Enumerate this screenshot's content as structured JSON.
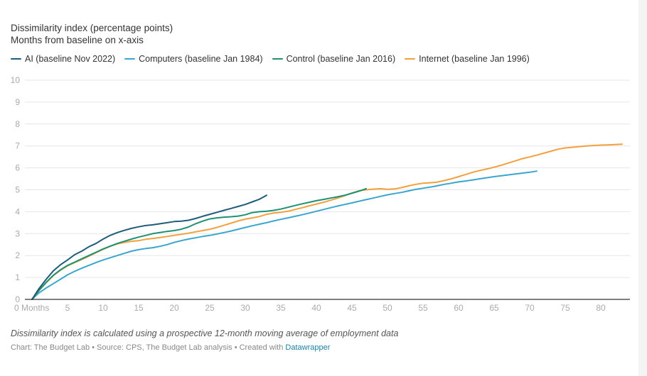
{
  "header": {
    "title_line1": "Dissimilarity index (percentage points)",
    "title_line2": "Months from baseline on x-axis"
  },
  "footer": {
    "notes": "Dissimilarity index is calculated using a prospective 12-month moving average of employment data",
    "byline_prefix": "Chart: The Budget Lab • Source: CPS, The Budget Lab analysis • Created with ",
    "byline_link": "Datawrapper"
  },
  "chart_data": {
    "type": "line",
    "title": "Dissimilarity index (percentage points)",
    "subtitle": "Months from baseline on x-axis",
    "xlabel": "Months from baseline",
    "ylabel": "Dissimilarity index (percentage points)",
    "xlim": [
      0,
      84
    ],
    "ylim": [
      0,
      10
    ],
    "grid": true,
    "legend_position": "top-left",
    "x_ticks": [
      {
        "value": 0,
        "label": "0 Months"
      },
      {
        "value": 5,
        "label": "5"
      },
      {
        "value": 10,
        "label": "10"
      },
      {
        "value": 15,
        "label": "15"
      },
      {
        "value": 20,
        "label": "20"
      },
      {
        "value": 25,
        "label": "25"
      },
      {
        "value": 30,
        "label": "30"
      },
      {
        "value": 35,
        "label": "35"
      },
      {
        "value": 40,
        "label": "40"
      },
      {
        "value": 45,
        "label": "45"
      },
      {
        "value": 50,
        "label": "50"
      },
      {
        "value": 55,
        "label": "55"
      },
      {
        "value": 60,
        "label": "60"
      },
      {
        "value": 65,
        "label": "65"
      },
      {
        "value": 70,
        "label": "70"
      },
      {
        "value": 75,
        "label": "75"
      },
      {
        "value": 80,
        "label": "80"
      }
    ],
    "y_ticks": [
      0,
      1,
      2,
      3,
      4,
      5,
      6,
      7,
      8,
      9,
      10
    ],
    "series": [
      {
        "name": "AI (baseline Nov 2022)",
        "color": "#1f5c7a",
        "x_start": 0,
        "values": [
          0,
          0.5,
          0.92,
          1.3,
          1.58,
          1.8,
          2.04,
          2.2,
          2.4,
          2.55,
          2.75,
          2.92,
          3.05,
          3.15,
          3.24,
          3.31,
          3.37,
          3.4,
          3.45,
          3.5,
          3.55,
          3.57,
          3.61,
          3.69,
          3.79,
          3.88,
          3.97,
          4.06,
          4.15,
          4.24,
          4.33,
          4.45,
          4.57,
          4.75
        ]
      },
      {
        "name": "Computers (baseline Jan 1984)",
        "color": "#3aa6cf",
        "x_start": 0,
        "values": [
          0,
          0.3,
          0.52,
          0.72,
          0.92,
          1.12,
          1.28,
          1.42,
          1.55,
          1.68,
          1.8,
          1.9,
          2.0,
          2.1,
          2.2,
          2.27,
          2.32,
          2.36,
          2.42,
          2.5,
          2.6,
          2.68,
          2.75,
          2.81,
          2.87,
          2.92,
          2.98,
          3.05,
          3.12,
          3.2,
          3.28,
          3.36,
          3.43,
          3.5,
          3.58,
          3.65,
          3.72,
          3.79,
          3.86,
          3.94,
          4.02,
          4.1,
          4.18,
          4.26,
          4.33,
          4.4,
          4.48,
          4.55,
          4.62,
          4.7,
          4.77,
          4.83,
          4.88,
          4.95,
          5.02,
          5.07,
          5.12,
          5.18,
          5.25,
          5.3,
          5.36,
          5.4,
          5.45,
          5.5,
          5.55,
          5.6,
          5.64,
          5.68,
          5.72,
          5.76,
          5.8,
          5.85
        ]
      },
      {
        "name": "Control (baseline Jan 2016)",
        "color": "#1c9173",
        "x_start": 0,
        "values": [
          0,
          0.42,
          0.78,
          1.1,
          1.35,
          1.55,
          1.7,
          1.85,
          2.0,
          2.15,
          2.3,
          2.43,
          2.55,
          2.65,
          2.75,
          2.84,
          2.92,
          3.0,
          3.05,
          3.1,
          3.14,
          3.2,
          3.3,
          3.45,
          3.57,
          3.67,
          3.72,
          3.75,
          3.77,
          3.8,
          3.86,
          3.96,
          4.0,
          4.02,
          4.06,
          4.12,
          4.2,
          4.28,
          4.36,
          4.43,
          4.5,
          4.56,
          4.62,
          4.68,
          4.75,
          4.84,
          4.94,
          5.05
        ]
      },
      {
        "name": "Internet (baseline Jan 1996)",
        "color": "#f2a03d",
        "x_start": 0,
        "values": [
          0,
          0.4,
          0.76,
          1.08,
          1.33,
          1.53,
          1.68,
          1.82,
          1.97,
          2.13,
          2.28,
          2.42,
          2.53,
          2.6,
          2.65,
          2.68,
          2.74,
          2.78,
          2.82,
          2.87,
          2.92,
          2.97,
          3.02,
          3.08,
          3.14,
          3.2,
          3.28,
          3.38,
          3.48,
          3.58,
          3.66,
          3.72,
          3.78,
          3.88,
          3.94,
          3.97,
          4.02,
          4.1,
          4.18,
          4.27,
          4.35,
          4.43,
          4.52,
          4.62,
          4.73,
          4.85,
          4.95,
          5.0,
          5.03,
          5.05,
          5.02,
          5.04,
          5.1,
          5.18,
          5.25,
          5.3,
          5.32,
          5.35,
          5.42,
          5.5,
          5.6,
          5.7,
          5.8,
          5.88,
          5.95,
          6.03,
          6.12,
          6.22,
          6.32,
          6.42,
          6.5,
          6.58,
          6.67,
          6.76,
          6.85,
          6.91,
          6.94,
          6.97,
          7.0,
          7.02,
          7.04,
          7.05,
          7.06,
          7.08
        ]
      }
    ]
  }
}
